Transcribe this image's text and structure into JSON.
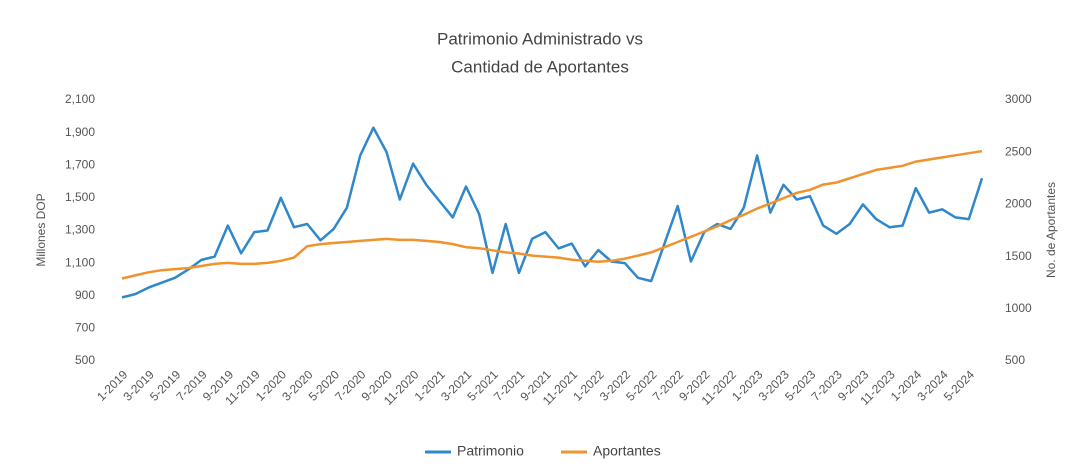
{
  "chart_data": {
    "type": "line",
    "title": [
      "Patrimonio Administrado vs",
      "Cantidad de Aportantes"
    ],
    "y_label": "Millones DOP",
    "y2_label": "No. de Aportantes",
    "categories": [
      "1-2019",
      null,
      "3-2019",
      null,
      "5-2019",
      null,
      "7-2019",
      null,
      "9-2019",
      null,
      "11-2019",
      null,
      "1-2020",
      null,
      "3-2020",
      null,
      "5-2020",
      null,
      "7-2020",
      null,
      "9-2020",
      null,
      "11-2020",
      null,
      "1-2021",
      null,
      "3-2021",
      null,
      "5-2021",
      null,
      "7-2021",
      null,
      "9-2021",
      null,
      "11-2021",
      null,
      "1-2022",
      null,
      "3-2022",
      null,
      "5-2022",
      null,
      "7-2022",
      null,
      "9-2022",
      null,
      "11-2022",
      null,
      "1-2023",
      null,
      "3-2023",
      null,
      "5-2023",
      null,
      "7-2023",
      null,
      "9-2023",
      null,
      "11-2023",
      null,
      "1-2024",
      null,
      "3-2024",
      null,
      "5-2024",
      null
    ],
    "series": [
      {
        "name": "Patrimonio",
        "color": "#2f87cc",
        "axis": "y",
        "values": [
          890,
          910,
          950,
          980,
          1010,
          1060,
          1120,
          1140,
          1330,
          1160,
          1290,
          1300,
          1500,
          1320,
          1340,
          1240,
          1310,
          1440,
          1760,
          1930,
          1780,
          1490,
          1710,
          1580,
          1480,
          1380,
          1570,
          1400,
          1040,
          1340,
          1040,
          1250,
          1290,
          1190,
          1220,
          1080,
          1180,
          1110,
          1100,
          1010,
          990,
          1220,
          1450,
          1110,
          1290,
          1340,
          1310,
          1440,
          1760,
          1410,
          1580,
          1490,
          1510,
          1330,
          1280,
          1340,
          1460,
          1370,
          1320,
          1330,
          1560,
          1410,
          1430,
          1380,
          1370,
          1620
        ]
      },
      {
        "name": "Aportantes",
        "color": "#f0922d",
        "axis": "y2",
        "values": [
          1290,
          1320,
          1350,
          1370,
          1380,
          1390,
          1410,
          1430,
          1440,
          1430,
          1430,
          1440,
          1460,
          1490,
          1600,
          1620,
          1630,
          1640,
          1650,
          1660,
          1670,
          1660,
          1660,
          1650,
          1640,
          1620,
          1590,
          1580,
          1560,
          1540,
          1530,
          1510,
          1500,
          1490,
          1470,
          1460,
          1450,
          1460,
          1480,
          1510,
          1540,
          1590,
          1640,
          1690,
          1740,
          1790,
          1850,
          1900,
          1960,
          2010,
          2060,
          2110,
          2140,
          2190,
          2210,
          2250,
          2290,
          2330,
          2350,
          2370,
          2410,
          2430,
          2450,
          2470,
          2490,
          2510
        ]
      }
    ],
    "ylim": [
      500,
      2100
    ],
    "yticks": [
      500,
      700,
      900,
      {
        "value": 1100,
        "label": "1,100"
      },
      {
        "value": 1300,
        "label": "1,300"
      },
      {
        "value": 1500,
        "label": "1,500"
      },
      {
        "value": 1700,
        "label": "1,700"
      },
      {
        "value": 1900,
        "label": "1,900"
      },
      {
        "value": 2100,
        "label": "2,100"
      }
    ],
    "y2lim": [
      500,
      3000
    ],
    "y2ticks": [
      500,
      1000,
      1500,
      2000,
      2500,
      3000
    ],
    "grid": false,
    "legend": "bottom"
  }
}
